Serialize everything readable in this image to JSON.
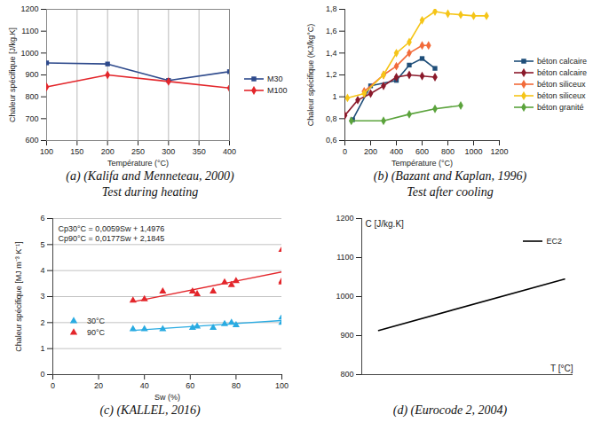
{
  "chart_data": [
    {
      "type": "line",
      "caption": [
        "(a) (Kalifa and Menneteau, 2000)",
        "Test during heating"
      ],
      "xlabel": "Température (°C)",
      "ylabel": "Chaleur spécifique [J/kg.K]",
      "xlim": [
        100,
        400
      ],
      "xticks": [
        100,
        150,
        200,
        250,
        300,
        350,
        400
      ],
      "ylim": [
        600,
        1200
      ],
      "yticks": [
        600,
        700,
        800,
        900,
        1000,
        1100,
        1200
      ],
      "grid": "x",
      "legend": "right",
      "series": [
        {
          "name": "M30",
          "color": "#2e4a8c",
          "marker": "square",
          "x": [
            100,
            200,
            300,
            400
          ],
          "values": [
            955,
            950,
            875,
            915
          ]
        },
        {
          "name": "M100",
          "color": "#e3262b",
          "marker": "diamond",
          "x": [
            100,
            200,
            300,
            400
          ],
          "values": [
            845,
            900,
            870,
            840
          ]
        }
      ]
    },
    {
      "type": "line",
      "caption": [
        "(b) (Bazant and Kaplan, 1996)",
        "Test after cooling"
      ],
      "xlabel": "Température (°C)",
      "ylabel": "Chaleur spécifique (KJ/kg°C)",
      "xlim": [
        0,
        1200
      ],
      "xticks": [
        0,
        200,
        400,
        600,
        800,
        1000,
        1200
      ],
      "ylim": [
        0.6,
        1.8
      ],
      "yticks": [
        {
          "value": 0.6,
          "label": "0,6"
        },
        {
          "value": 0.8,
          "label": "0,8"
        },
        1,
        {
          "value": 1.2,
          "label": "1,2"
        },
        {
          "value": 1.4,
          "label": "1,4"
        },
        {
          "value": 1.6,
          "label": "1,6"
        },
        {
          "value": 1.8,
          "label": "1,8"
        }
      ],
      "grid": false,
      "legend": "right",
      "series": [
        {
          "name": "béton calcaire",
          "color": "#1f4e79",
          "marker": "square",
          "x": [
            60,
            200,
            400,
            500,
            600,
            700
          ],
          "values": [
            0.79,
            1.1,
            1.15,
            1.29,
            1.35,
            1.26
          ]
        },
        {
          "name": "béton calcaire",
          "color": "#8b1a2b",
          "marker": "diamond",
          "x": [
            0,
            100,
            200,
            300,
            400,
            500,
            600,
            700
          ],
          "values": [
            0.83,
            0.97,
            1.03,
            1.1,
            1.18,
            1.2,
            1.19,
            1.18
          ]
        },
        {
          "name": "béton siliceux",
          "color": "#f26b3a",
          "marker": "diamond",
          "x": [
            150,
            300,
            400,
            500,
            600,
            650
          ],
          "values": [
            1.05,
            1.2,
            1.28,
            1.4,
            1.47,
            1.47
          ]
        },
        {
          "name": "béton siliceux",
          "color": "#f5c518",
          "marker": "diamond",
          "x": [
            20,
            150,
            300,
            400,
            500,
            600,
            700,
            800,
            900,
            1000,
            1100
          ],
          "values": [
            0.99,
            1.03,
            1.2,
            1.4,
            1.5,
            1.7,
            1.78,
            1.76,
            1.75,
            1.74,
            1.74
          ]
        },
        {
          "name": "béton granité",
          "color": "#5ba33c",
          "marker": "diamond",
          "x": [
            50,
            300,
            500,
            700,
            900
          ],
          "values": [
            0.78,
            0.78,
            0.84,
            0.89,
            0.92
          ]
        }
      ]
    },
    {
      "type": "scatter",
      "caption": [
        "(c) (KALLEL, 2016)"
      ],
      "xlabel": "Sw (%)",
      "ylabel": "Chaleur spécifique [MJ m⁻³ K⁻¹]",
      "xlim": [
        0,
        100
      ],
      "xticks": [
        0,
        20,
        40,
        60,
        80,
        100
      ],
      "ylim": [
        0,
        6
      ],
      "yticks": [
        0,
        1,
        2,
        3,
        4,
        5,
        6
      ],
      "grid": "y",
      "legend": "lower left",
      "annotations": [
        "Cp30°C = 0,0059Sw + 1,4976",
        "Cp90°C = 0,0177Sw + 2,1845"
      ],
      "series": [
        {
          "name": "30°C",
          "color": "#29abe2",
          "marker": "triangle",
          "x": [
            35,
            40,
            48,
            61,
            63,
            70,
            75,
            78,
            80,
            100,
            100
          ],
          "values": [
            1.75,
            1.75,
            1.75,
            1.8,
            1.85,
            1.8,
            1.95,
            2.0,
            1.9,
            2.2,
            2.0
          ],
          "trend": {
            "x": [
              35,
              100
            ],
            "values": [
              1.7,
              2.08
            ]
          }
        },
        {
          "name": "90°C",
          "color": "#e3262b",
          "marker": "triangle",
          "x": [
            35,
            40,
            48,
            61,
            63,
            70,
            75,
            78,
            80,
            100,
            100,
            100
          ],
          "values": [
            2.85,
            2.9,
            3.2,
            3.2,
            3.1,
            3.2,
            3.55,
            3.45,
            3.6,
            4.8,
            3.6,
            3.55
          ],
          "trend": {
            "x": [
              35,
              100
            ],
            "values": [
              2.8,
              3.95
            ]
          }
        }
      ]
    },
    {
      "type": "line",
      "caption": [
        "(d) (Eurocode 2, 2004)"
      ],
      "xlabel": "T [°C]",
      "ylabel": "C [J/kg.K]",
      "xlim": [
        0,
        250
      ],
      "xticks": [],
      "ylim": [
        800,
        1200
      ],
      "yticks": [
        800,
        900,
        1000,
        1100,
        1200
      ],
      "grid": false,
      "legend": "upper right",
      "tick_labels": "y",
      "series": [
        {
          "name": "EC2",
          "color": "#000000",
          "x": [
            20,
            240
          ],
          "values": [
            913,
            1045
          ]
        }
      ]
    }
  ]
}
